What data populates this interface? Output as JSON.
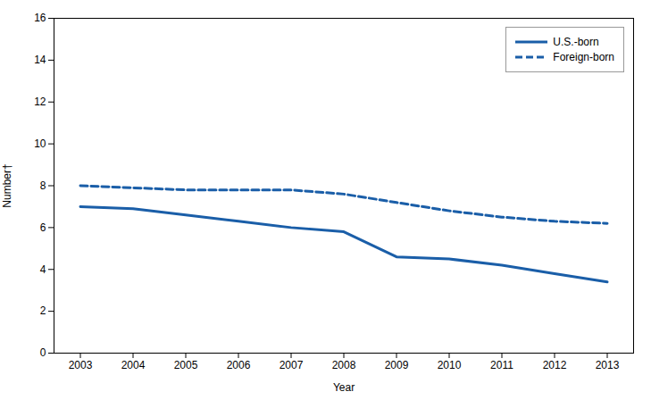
{
  "chart_data": {
    "type": "line",
    "xlabel": "Year",
    "ylabel": "Number†",
    "x": [
      2003,
      2004,
      2005,
      2006,
      2007,
      2008,
      2009,
      2010,
      2011,
      2012,
      2013
    ],
    "series": [
      {
        "name": "U.S.-born",
        "color": "#1A5EA8",
        "line_style": "solid",
        "values": [
          7.0,
          6.9,
          6.6,
          6.3,
          6.0,
          5.8,
          4.6,
          4.5,
          4.2,
          3.8,
          3.4
        ]
      },
      {
        "name": "Foreign-born",
        "color": "#1A5EA8",
        "line_style": "dashed",
        "values": [
          8.0,
          7.9,
          7.8,
          7.8,
          7.8,
          7.6,
          7.2,
          6.8,
          6.5,
          6.3,
          6.2
        ]
      }
    ],
    "xlim": [
      2002.5,
      2013.5
    ],
    "xticks": [
      2003,
      2004,
      2005,
      2006,
      2007,
      2008,
      2009,
      2010,
      2011,
      2012,
      2013
    ],
    "ylim": [
      0,
      16
    ],
    "yticks": [
      0,
      2,
      4,
      6,
      8,
      10,
      12,
      14,
      16
    ],
    "grid": false,
    "legend": "upper right"
  }
}
